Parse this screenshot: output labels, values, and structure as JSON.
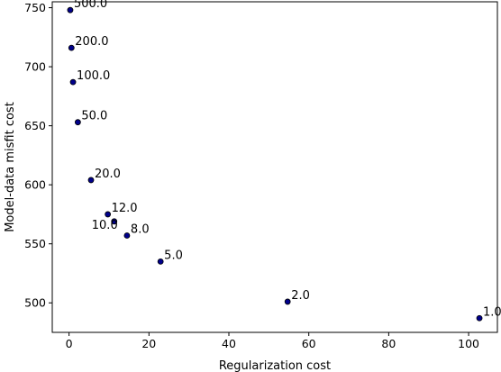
{
  "chart_data": {
    "type": "scatter",
    "xlabel": "Regularization cost",
    "ylabel": "Model-data misfit cost",
    "xlim": [
      -4.2,
      107.2
    ],
    "ylim": [
      475,
      755
    ],
    "xticks": [
      0,
      20,
      40,
      60,
      80,
      100
    ],
    "yticks": [
      500,
      550,
      600,
      650,
      700,
      750
    ],
    "marker_color": "#00008b",
    "grid": false,
    "points": [
      {
        "x": 0.3,
        "y": 748,
        "label": "500.0"
      },
      {
        "x": 0.6,
        "y": 716,
        "label": "200.0"
      },
      {
        "x": 1.0,
        "y": 687,
        "label": "100.0"
      },
      {
        "x": 2.2,
        "y": 653,
        "label": "50.0"
      },
      {
        "x": 5.5,
        "y": 604,
        "label": "20.0"
      },
      {
        "x": 9.7,
        "y": 575,
        "label": "12.0"
      },
      {
        "x": 11.3,
        "y": 569,
        "label": "10.0"
      },
      {
        "x": 14.5,
        "y": 557,
        "label": "8.0"
      },
      {
        "x": 22.9,
        "y": 535,
        "label": "5.0"
      },
      {
        "x": 54.7,
        "y": 501,
        "label": "2.0"
      },
      {
        "x": 102.7,
        "y": 487,
        "label": "1.0"
      }
    ]
  }
}
